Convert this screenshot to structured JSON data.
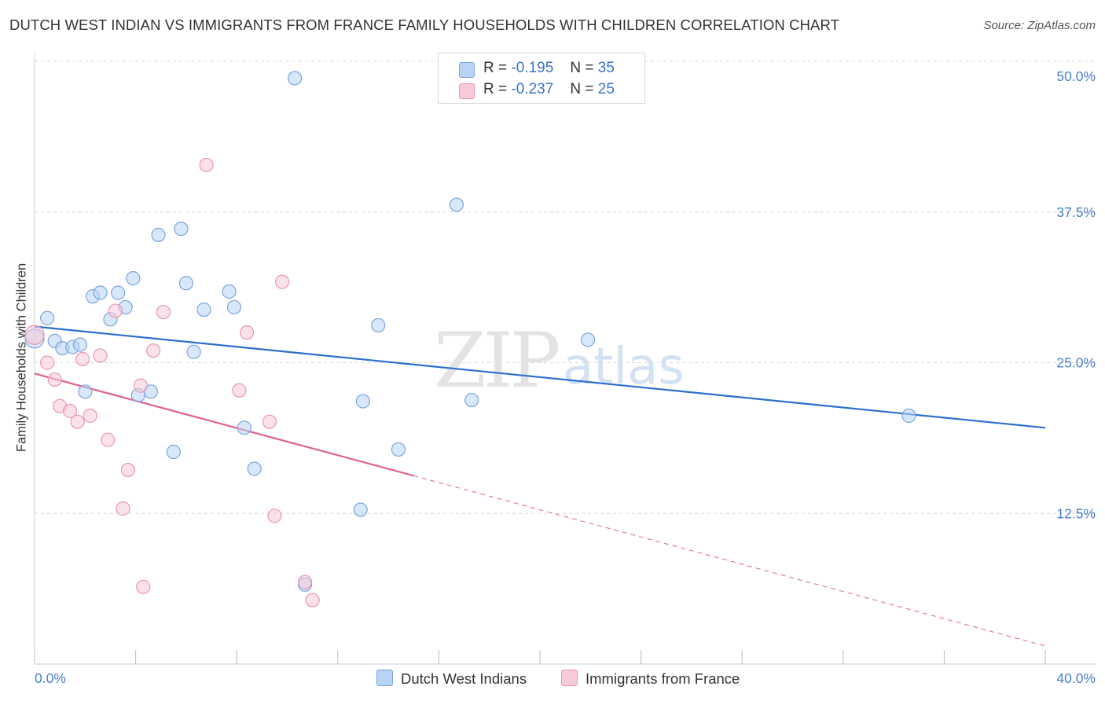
{
  "title": "DUTCH WEST INDIAN VS IMMIGRANTS FROM FRANCE FAMILY HOUSEHOLDS WITH CHILDREN CORRELATION CHART",
  "source": "Source: ZipAtlas.com",
  "colors": {
    "blue_fill": "#b8d3f4",
    "blue_stroke": "#7aa6dd",
    "blue_line": "#2b6fd0",
    "pink_fill": "#f8c9d8",
    "pink_stroke": "#e996b3",
    "pink_line": "#e0628f",
    "grid": "#d9d9d9",
    "tick_text": "#4a7fcf"
  },
  "legend": {
    "series1": {
      "r_label": "R =",
      "r_value": "-0.195",
      "n_label": "N =",
      "n_value": "35"
    },
    "series2": {
      "r_label": "R =",
      "r_value": "-0.237",
      "n_label": "N =",
      "n_value": "25"
    }
  },
  "bottom_legend": {
    "series1": "Dutch West Indians",
    "series2": "Immigrants from France"
  },
  "watermark": {
    "zip": "ZIP",
    "atlas": "atlas"
  },
  "chart_data": {
    "type": "scatter",
    "title": "DUTCH WEST INDIAN VS IMMIGRANTS FROM FRANCE FAMILY HOUSEHOLDS WITH CHILDREN CORRELATION CHART",
    "xlabel": "",
    "ylabel": "Family Households with Children",
    "xlim": [
      0,
      40
    ],
    "ylim": [
      0,
      50
    ],
    "x_tick_labels": [
      "0.0%",
      "40.0%"
    ],
    "y_ticks": [
      12.5,
      25.0,
      37.5,
      50.0
    ],
    "y_tick_labels": [
      "12.5%",
      "25.0%",
      "37.5%",
      "50.0%"
    ],
    "grid": true,
    "series": [
      {
        "name": "Dutch West Indians",
        "trend": {
          "x": [
            0,
            40
          ],
          "y": [
            28.0,
            19.6
          ],
          "dashed_from": null
        },
        "points": [
          [
            0.0,
            27.0
          ],
          [
            0.5,
            28.7
          ],
          [
            0.8,
            26.8
          ],
          [
            1.1,
            26.2
          ],
          [
            1.5,
            26.3
          ],
          [
            1.8,
            26.5
          ],
          [
            2.0,
            22.6
          ],
          [
            2.3,
            30.5
          ],
          [
            2.6,
            30.8
          ],
          [
            3.0,
            28.6
          ],
          [
            3.3,
            30.8
          ],
          [
            3.6,
            29.6
          ],
          [
            3.9,
            32.0
          ],
          [
            4.1,
            22.3
          ],
          [
            4.6,
            22.6
          ],
          [
            4.9,
            35.6
          ],
          [
            5.5,
            17.6
          ],
          [
            5.8,
            36.1
          ],
          [
            6.0,
            31.6
          ],
          [
            6.3,
            25.9
          ],
          [
            6.7,
            29.4
          ],
          [
            7.7,
            30.9
          ],
          [
            7.9,
            29.6
          ],
          [
            8.3,
            19.6
          ],
          [
            8.7,
            16.2
          ],
          [
            10.3,
            48.6
          ],
          [
            10.7,
            6.6
          ],
          [
            12.9,
            12.8
          ],
          [
            13.0,
            21.8
          ],
          [
            13.6,
            28.1
          ],
          [
            14.4,
            17.8
          ],
          [
            16.7,
            38.1
          ],
          [
            17.3,
            21.9
          ],
          [
            21.9,
            26.9
          ],
          [
            34.6,
            20.6
          ]
        ]
      },
      {
        "name": "Immigrants from France",
        "trend": {
          "x": [
            0,
            40
          ],
          "y": [
            24.1,
            1.5
          ],
          "dashed_from": 15.0
        },
        "points": [
          [
            0.0,
            27.3
          ],
          [
            0.5,
            25.0
          ],
          [
            0.8,
            23.6
          ],
          [
            1.0,
            21.4
          ],
          [
            1.4,
            21.0
          ],
          [
            1.7,
            20.1
          ],
          [
            1.9,
            25.3
          ],
          [
            2.2,
            20.6
          ],
          [
            2.6,
            25.6
          ],
          [
            2.9,
            18.6
          ],
          [
            3.2,
            29.3
          ],
          [
            3.5,
            12.9
          ],
          [
            3.7,
            16.1
          ],
          [
            4.2,
            23.1
          ],
          [
            4.3,
            6.4
          ],
          [
            4.7,
            26.0
          ],
          [
            5.1,
            29.2
          ],
          [
            6.8,
            41.4
          ],
          [
            8.1,
            22.7
          ],
          [
            8.4,
            27.5
          ],
          [
            9.3,
            20.1
          ],
          [
            9.5,
            12.3
          ],
          [
            9.8,
            31.7
          ],
          [
            10.7,
            6.8
          ],
          [
            11.0,
            5.3
          ]
        ]
      }
    ]
  }
}
